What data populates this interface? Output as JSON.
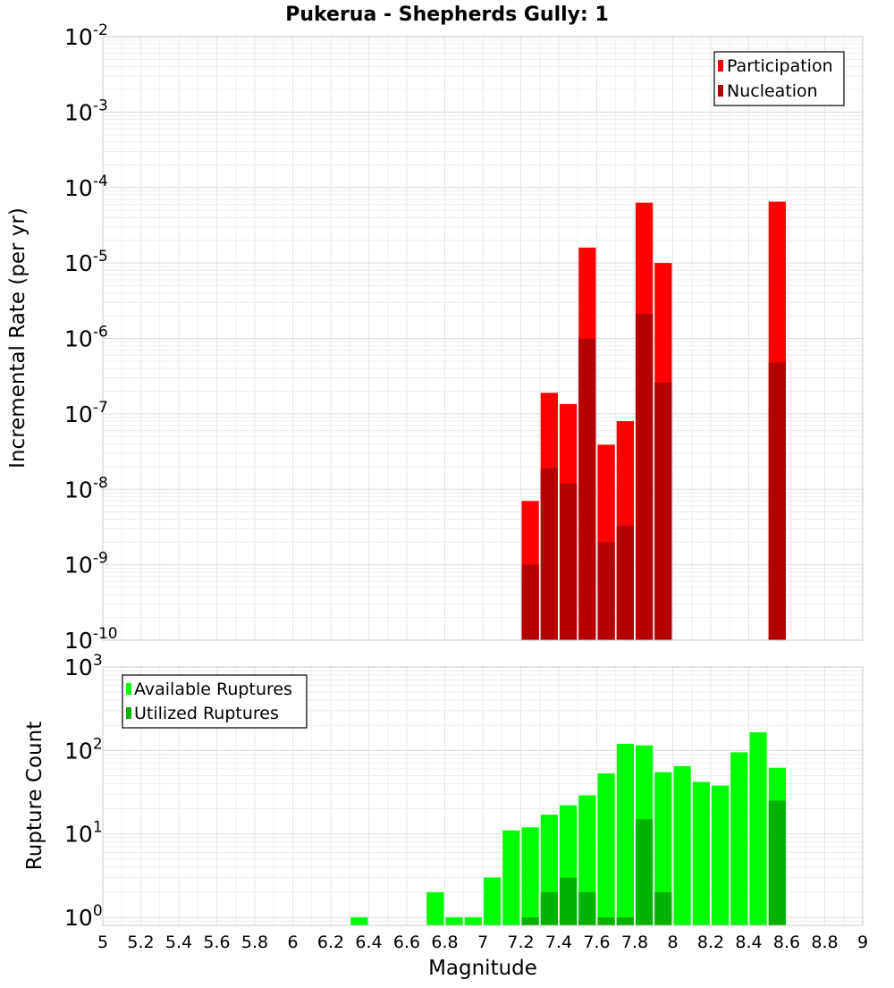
{
  "chart_data": [
    {
      "type": "bar",
      "title": "Pukerua - Shepherds Gully: 1",
      "xlabel": "Magnitude",
      "ylabel": "Incremental Rate (per yr)",
      "x_scale": "linear",
      "y_scale": "log",
      "xlim": [
        5,
        9
      ],
      "ylim": [
        1e-10,
        0.01
      ],
      "bar_width": 0.1,
      "grid": true,
      "legend_position": "top-right",
      "series": [
        {
          "name": "Participation",
          "color": "#ff0000",
          "x": [
            7.25,
            7.35,
            7.45,
            7.55,
            7.65,
            7.75,
            7.85,
            7.95,
            8.55
          ],
          "values": [
            7e-09,
            1.9e-07,
            1.35e-07,
            1.6e-05,
            3.9e-08,
            8e-08,
            6.3e-05,
            1e-05,
            6.5e-05
          ]
        },
        {
          "name": "Nucleation",
          "color": "#b30000",
          "x": [
            7.25,
            7.35,
            7.45,
            7.55,
            7.65,
            7.75,
            7.85,
            7.95,
            8.55
          ],
          "values": [
            1e-09,
            1.9e-08,
            1.2e-08,
            1e-06,
            2e-09,
            3.3e-09,
            2.1e-06,
            2.6e-07,
            4.8e-07
          ]
        }
      ],
      "y_ticks": [
        {
          "base": "10",
          "exp": "-10",
          "value": 1e-10
        },
        {
          "base": "10",
          "exp": "-9",
          "value": 1e-09
        },
        {
          "base": "10",
          "exp": "-8",
          "value": 1e-08
        },
        {
          "base": "10",
          "exp": "-7",
          "value": 1e-07
        },
        {
          "base": "10",
          "exp": "-6",
          "value": 1e-06
        },
        {
          "base": "10",
          "exp": "-5",
          "value": 1e-05
        },
        {
          "base": "10",
          "exp": "-4",
          "value": 0.0001
        },
        {
          "base": "10",
          "exp": "-3",
          "value": 0.001
        },
        {
          "base": "10",
          "exp": "-2",
          "value": 0.01
        }
      ]
    },
    {
      "type": "bar",
      "title": "",
      "xlabel": "Magnitude",
      "ylabel": "Rupture Count",
      "x_scale": "linear",
      "y_scale": "log",
      "xlim": [
        5,
        9
      ],
      "ylim": [
        0.8,
        1000
      ],
      "bar_width": 0.1,
      "grid": true,
      "legend_position": "top-left",
      "x_tick_labels": [
        "5",
        "5.2",
        "5.4",
        "5.6",
        "5.8",
        "6",
        "6.2",
        "6.4",
        "6.6",
        "6.8",
        "7",
        "7.2",
        "7.4",
        "7.6",
        "7.8",
        "8",
        "8.2",
        "8.4",
        "8.6",
        "8.8",
        "9"
      ],
      "series": [
        {
          "name": "Available Ruptures",
          "color": "#00ff00",
          "x": [
            6.35,
            6.75,
            6.85,
            6.95,
            7.05,
            7.15,
            7.25,
            7.35,
            7.45,
            7.55,
            7.65,
            7.75,
            7.85,
            7.95,
            8.05,
            8.15,
            8.25,
            8.35,
            8.45,
            8.55
          ],
          "values": [
            1,
            2,
            1,
            1,
            3,
            11,
            12,
            17,
            22,
            29,
            53,
            120,
            115,
            55,
            65,
            42,
            38,
            95,
            165,
            62
          ]
        },
        {
          "name": "Utilized Ruptures",
          "color": "#00b300",
          "x": [
            7.25,
            7.35,
            7.45,
            7.55,
            7.65,
            7.75,
            7.85,
            7.95,
            8.55
          ],
          "values": [
            1,
            2,
            3,
            2,
            1,
            1,
            15,
            2,
            25
          ]
        }
      ],
      "y_ticks": [
        {
          "base": "10",
          "exp": "0",
          "value": 1
        },
        {
          "base": "10",
          "exp": "1",
          "value": 10
        },
        {
          "base": "10",
          "exp": "2",
          "value": 100
        },
        {
          "base": "10",
          "exp": "3",
          "value": 1000
        }
      ]
    }
  ]
}
